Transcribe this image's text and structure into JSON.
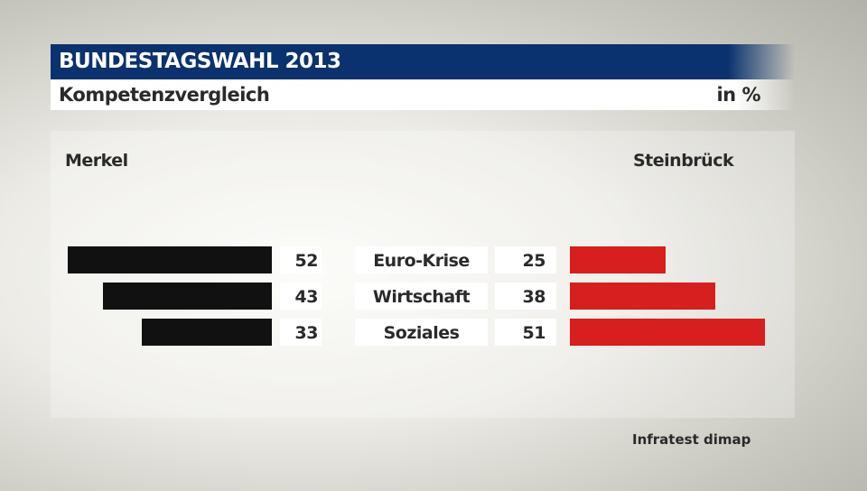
{
  "header": {
    "title": "BUNDESTAGSWAHL 2013",
    "subtitle": "Kompetenzvergleich",
    "unit": "in %"
  },
  "source": "Infratest dimap",
  "colors": {
    "left": "#111111",
    "right": "#d81f1f",
    "header": "#0a326e"
  },
  "chart_data": {
    "type": "bar",
    "title": "Kompetenzvergleich",
    "categories": [
      "Euro-Krise",
      "Wirtschaft",
      "Soziales"
    ],
    "series": [
      {
        "name": "Merkel",
        "values": [
          52,
          43,
          33
        ]
      },
      {
        "name": "Steinbrück",
        "values": [
          25,
          38,
          51
        ]
      }
    ],
    "unit": "%"
  }
}
